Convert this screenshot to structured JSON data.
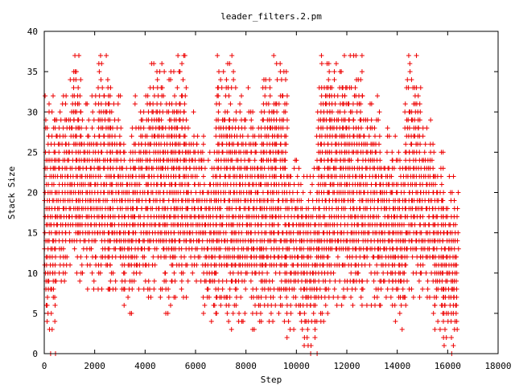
{
  "chart_data": {
    "type": "scatter",
    "title": "leader_filters.2.pm",
    "xlabel": "Step",
    "ylabel": "Stack Size",
    "xlim": [
      0,
      18000
    ],
    "ylim": [
      0,
      40
    ],
    "xticks": [
      0,
      2000,
      4000,
      6000,
      8000,
      10000,
      12000,
      14000,
      16000,
      18000
    ],
    "yticks": [
      0,
      5,
      10,
      15,
      20,
      25,
      30,
      35,
      40
    ],
    "xtick_labels": [
      "0",
      "2000",
      "4000",
      "6000",
      "8000",
      "10000",
      "12000",
      "14000",
      "16000",
      "18000"
    ],
    "ytick_labels": [
      "0",
      "5",
      "10",
      "15",
      "20",
      "25",
      "30",
      "35",
      "40"
    ],
    "grid": false,
    "legend": "none",
    "marker": "plus",
    "color": "#ee0000",
    "series": [
      {
        "points_description": "Dense band of stack size samples per step",
        "bands": [
          {
            "x": [
              0,
              400
            ],
            "y": [
              0,
              32
            ]
          },
          {
            "x": [
              400,
              1000
            ],
            "y": [
              9,
              32
            ]
          },
          {
            "x": [
              1000,
              1400
            ],
            "y": [
              9,
              37
            ]
          },
          {
            "x": [
              1400,
              2100
            ],
            "y": [
              8,
              32
            ]
          },
          {
            "x": [
              2100,
              2600
            ],
            "y": [
              8,
              37
            ]
          },
          {
            "x": [
              2600,
              3000
            ],
            "y": [
              8,
              32
            ]
          },
          {
            "x": [
              3000,
              3500
            ],
            "y": [
              5,
              28
            ]
          },
          {
            "x": [
              3500,
              4100
            ],
            "y": [
              7,
              32
            ]
          },
          {
            "x": [
              4100,
              4700
            ],
            "y": [
              7,
              37
            ]
          },
          {
            "x": [
              4700,
              5100
            ],
            "y": [
              5,
              35
            ]
          },
          {
            "x": [
              5100,
              5600
            ],
            "y": [
              7,
              37
            ]
          },
          {
            "x": [
              5600,
              6300
            ],
            "y": [
              9,
              30
            ]
          },
          {
            "x": [
              6300,
              6800
            ],
            "y": [
              4,
              25
            ]
          },
          {
            "x": [
              6800,
              7500
            ],
            "y": [
              3,
              37
            ]
          },
          {
            "x": [
              7500,
              8200
            ],
            "y": [
              4,
              33
            ]
          },
          {
            "x": [
              8200,
              8600
            ],
            "y": [
              3,
              30
            ]
          },
          {
            "x": [
              8600,
              9100
            ],
            "y": [
              4,
              37
            ]
          },
          {
            "x": [
              9100,
              9600
            ],
            "y": [
              4,
              36
            ]
          },
          {
            "x": [
              9600,
              10200
            ],
            "y": [
              2,
              25
            ]
          },
          {
            "x": [
              10200,
              10800
            ],
            "y": [
              0,
              23
            ]
          },
          {
            "x": [
              10800,
              11300
            ],
            "y": [
              4,
              37
            ]
          },
          {
            "x": [
              11300,
              11900
            ],
            "y": [
              6,
              36
            ]
          },
          {
            "x": [
              11900,
              12600
            ],
            "y": [
              5,
              37
            ]
          },
          {
            "x": [
              12600,
              13300
            ],
            "y": [
              6,
              32
            ]
          },
          {
            "x": [
              13300,
              13800
            ],
            "y": [
              6,
              28
            ]
          },
          {
            "x": [
              13800,
              14300
            ],
            "y": [
              3,
              27
            ]
          },
          {
            "x": [
              14300,
              14900
            ],
            "y": [
              7,
              37
            ]
          },
          {
            "x": [
              14900,
              15400
            ],
            "y": [
              7,
              30
            ]
          },
          {
            "x": [
              15400,
              15800
            ],
            "y": [
              3,
              25
            ]
          },
          {
            "x": [
              15800,
              16400
            ],
            "y": [
              0,
              22
            ]
          }
        ]
      }
    ]
  }
}
